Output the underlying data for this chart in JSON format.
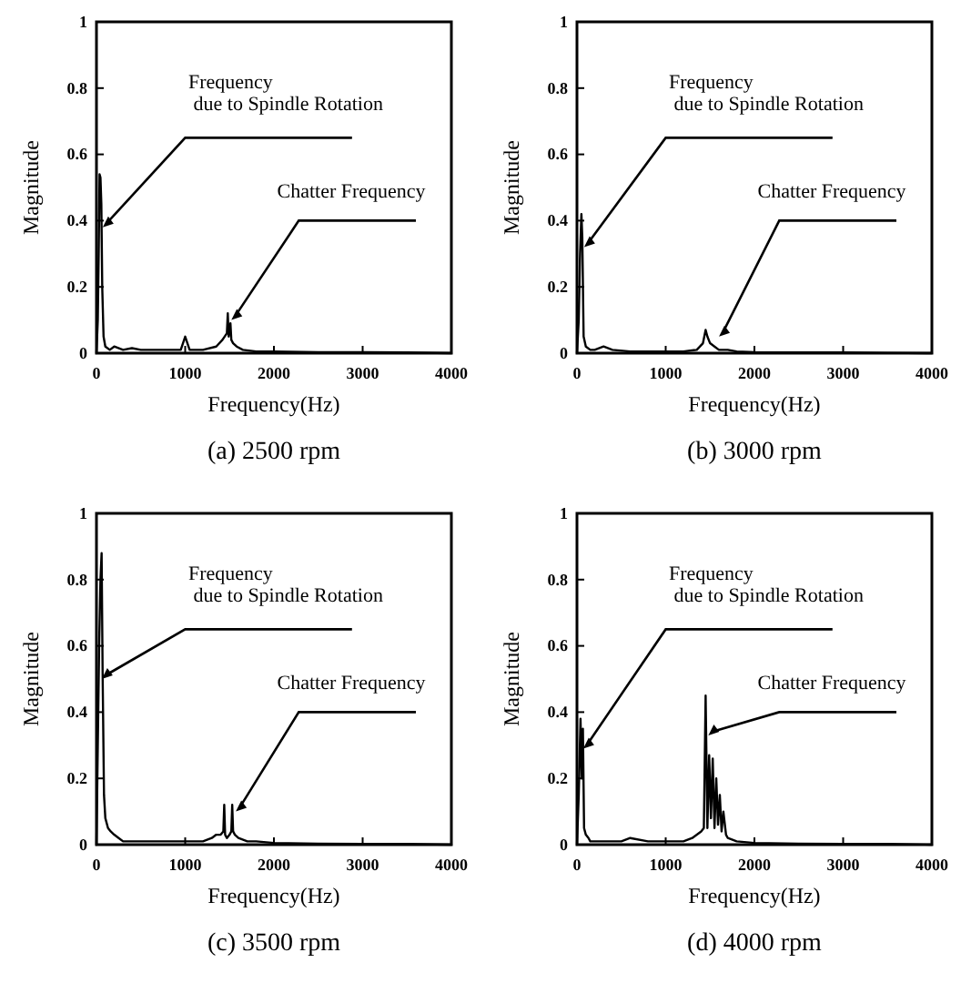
{
  "chart_data": [
    {
      "type": "line",
      "title": "(a) 2500 rpm",
      "xlabel": "Frequency(Hz)",
      "ylabel": "Magnitude",
      "xlim": [
        0,
        4000
      ],
      "xticks": [
        0,
        1000,
        2000,
        3000,
        4000
      ],
      "ylim": [
        0,
        1
      ],
      "yticks": [
        0,
        0.2,
        0.4,
        0.6,
        0.8,
        1
      ],
      "x": [
        0,
        15,
        25,
        35,
        45,
        55,
        65,
        80,
        100,
        150,
        200,
        300,
        400,
        500,
        600,
        800,
        950,
        1000,
        1050,
        1200,
        1350,
        1420,
        1470,
        1480,
        1490,
        1510,
        1520,
        1540,
        1580,
        1650,
        1800,
        2000,
        2500,
        3000,
        3500,
        4000
      ],
      "series": [
        {
          "color": "#000000",
          "values": [
            0,
            0.1,
            0.3,
            0.54,
            0.53,
            0.45,
            0.2,
            0.05,
            0.02,
            0.01,
            0.02,
            0.01,
            0.015,
            0.01,
            0.01,
            0.01,
            0.01,
            0.05,
            0.01,
            0.01,
            0.02,
            0.04,
            0.06,
            0.12,
            0.05,
            0.09,
            0.04,
            0.03,
            0.02,
            0.01,
            0.005,
            0.005,
            0.003,
            0.003,
            0.002,
            0
          ]
        }
      ],
      "annotations": [
        {
          "text": "Frequency\n due to Spindle Rotation",
          "x": 50,
          "y": 0.38
        },
        {
          "text": "Chatter Frequency",
          "x": 1500,
          "y": 0.1
        }
      ]
    },
    {
      "type": "line",
      "title": "(b) 3000 rpm",
      "xlabel": "Frequency(Hz)",
      "ylabel": "Magnitude",
      "xlim": [
        0,
        4000
      ],
      "xticks": [
        0,
        1000,
        2000,
        3000,
        4000
      ],
      "ylim": [
        0,
        1
      ],
      "yticks": [
        0,
        0.2,
        0.4,
        0.6,
        0.8,
        1
      ],
      "x": [
        0,
        20,
        35,
        50,
        60,
        75,
        100,
        150,
        200,
        300,
        400,
        600,
        800,
        1000,
        1200,
        1350,
        1420,
        1450,
        1470,
        1500,
        1550,
        1600,
        1700,
        1800,
        2000,
        2500,
        3000,
        3500,
        4000
      ],
      "series": [
        {
          "color": "#000000",
          "values": [
            0,
            0.1,
            0.3,
            0.42,
            0.35,
            0.05,
            0.02,
            0.01,
            0.01,
            0.02,
            0.01,
            0.005,
            0.005,
            0.005,
            0.005,
            0.01,
            0.03,
            0.07,
            0.05,
            0.03,
            0.02,
            0.01,
            0.01,
            0.005,
            0.003,
            0.002,
            0.002,
            0.001,
            0
          ]
        }
      ],
      "annotations": [
        {
          "text": "Frequency\n due to Spindle Rotation",
          "x": 60,
          "y": 0.32
        },
        {
          "text": "Chatter Frequency",
          "x": 1580,
          "y": 0.05
        }
      ]
    },
    {
      "type": "line",
      "title": "(c) 3500 rpm",
      "xlabel": "Frequency(Hz)",
      "ylabel": "Magnitude",
      "xlim": [
        0,
        4000
      ],
      "xticks": [
        0,
        1000,
        2000,
        3000,
        4000
      ],
      "ylim": [
        0,
        1
      ],
      "yticks": [
        0,
        0.2,
        0.4,
        0.6,
        0.8,
        1
      ],
      "x": [
        0,
        15,
        30,
        45,
        58,
        70,
        85,
        100,
        130,
        160,
        200,
        250,
        300,
        500,
        800,
        1000,
        1200,
        1300,
        1350,
        1400,
        1430,
        1440,
        1450,
        1470,
        1500,
        1520,
        1530,
        1540,
        1560,
        1600,
        1700,
        1800,
        2000,
        2500,
        3000,
        3500,
        4000
      ],
      "series": [
        {
          "color": "#000000",
          "values": [
            0,
            0.3,
            0.6,
            0.8,
            0.88,
            0.5,
            0.15,
            0.08,
            0.05,
            0.04,
            0.03,
            0.02,
            0.01,
            0.01,
            0.01,
            0.01,
            0.01,
            0.02,
            0.03,
            0.03,
            0.04,
            0.12,
            0.03,
            0.02,
            0.03,
            0.04,
            0.12,
            0.04,
            0.03,
            0.02,
            0.01,
            0.01,
            0.005,
            0.003,
            0.002,
            0.002,
            0
          ]
        }
      ],
      "annotations": [
        {
          "text": "Frequency\n due to Spindle Rotation",
          "x": 40,
          "y": 0.5
        },
        {
          "text": "Chatter Frequency",
          "x": 1550,
          "y": 0.1
        }
      ]
    },
    {
      "type": "line",
      "title": "(d) 4000 rpm",
      "xlabel": "Frequency(Hz)",
      "ylabel": "Magnitude",
      "xlim": [
        0,
        4000
      ],
      "xticks": [
        0,
        1000,
        2000,
        3000,
        4000
      ],
      "ylim": [
        0,
        1
      ],
      "yticks": [
        0,
        0.2,
        0.4,
        0.6,
        0.8,
        1
      ],
      "x": [
        0,
        20,
        40,
        55,
        67,
        80,
        100,
        130,
        150,
        200,
        300,
        500,
        600,
        800,
        1000,
        1200,
        1300,
        1400,
        1430,
        1450,
        1470,
        1490,
        1510,
        1530,
        1550,
        1570,
        1590,
        1610,
        1630,
        1650,
        1680,
        1700,
        1800,
        2000,
        2500,
        3000,
        3500,
        4000
      ],
      "series": [
        {
          "color": "#000000",
          "values": [
            0,
            0.15,
            0.38,
            0.2,
            0.35,
            0.05,
            0.03,
            0.02,
            0.01,
            0.01,
            0.01,
            0.01,
            0.02,
            0.01,
            0.01,
            0.01,
            0.02,
            0.04,
            0.05,
            0.45,
            0.05,
            0.27,
            0.08,
            0.26,
            0.05,
            0.2,
            0.06,
            0.15,
            0.04,
            0.1,
            0.03,
            0.02,
            0.01,
            0.005,
            0.003,
            0.002,
            0.002,
            0
          ]
        }
      ],
      "annotations": [
        {
          "text": "Frequency\n due to Spindle Rotation",
          "x": 50,
          "y": 0.29
        },
        {
          "text": "Chatter Frequency",
          "x": 1460,
          "y": 0.33
        }
      ]
    }
  ]
}
